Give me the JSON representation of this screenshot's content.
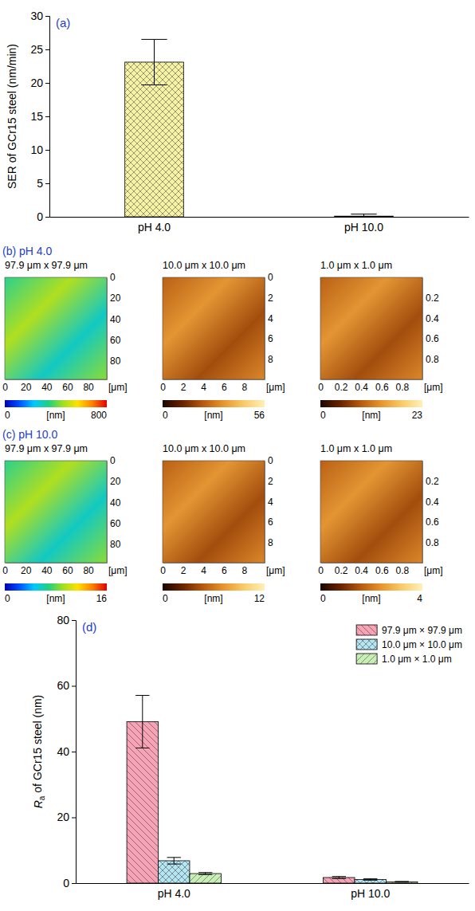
{
  "chart_data": [
    {
      "type": "bar",
      "title": "(a)",
      "y_label": "SER of GCr15 steel (nm/min)",
      "categories": [
        "pH 4.0",
        "pH 10.0"
      ],
      "values": [
        23.1,
        0.1
      ],
      "errors": [
        3.4,
        0.3
      ],
      "color": "#f7f3a6",
      "ylim": [
        0,
        30
      ],
      "yticks": [
        0,
        5,
        10,
        15,
        20,
        25,
        30
      ]
    },
    {
      "type": "image",
      "title": "(b) pH 4.0",
      "panels": [
        {
          "title": "97.9 μm x 97.9 μm",
          "x_label": "[μm]",
          "xlim": [
            0,
            97.9
          ],
          "ylim": [
            0,
            97.9
          ],
          "xticks": [
            0,
            20,
            40,
            60,
            80
          ],
          "yticks": [
            0,
            20,
            40,
            60,
            80
          ],
          "colorbar": {
            "range": [
              0,
              800
            ],
            "ticks": [
              0,
              800
            ],
            "label": "[nm]",
            "colors": [
              "#0000b4",
              "#0050ff",
              "#00c8ff",
              "#20d080",
              "#a0e020",
              "#ffe000",
              "#ff8000",
              "#e00000"
            ]
          }
        },
        {
          "title": "10.0 μm x 10.0 μm",
          "x_label": "[μm]",
          "xlim": [
            0,
            10
          ],
          "ylim": [
            0,
            10
          ],
          "xticks": [
            0,
            2,
            4,
            6,
            8
          ],
          "yticks": [
            0,
            2,
            4,
            6,
            8
          ],
          "colorbar": {
            "range": [
              0,
              56
            ],
            "ticks": [
              0,
              56
            ],
            "label": "[nm]",
            "colors": [
              "#1a0500",
              "#6b2400",
              "#b85a10",
              "#e8962e",
              "#f8cc6a",
              "#fff0b8"
            ]
          }
        },
        {
          "title": "1.0 μm x 1.0 μm",
          "x_label": "[μm]",
          "xlim": [
            0,
            1
          ],
          "ylim": [
            0,
            1
          ],
          "xticks": [
            0,
            0.2,
            0.4,
            0.6,
            0.8
          ],
          "yticks": [
            0.2,
            0.4,
            0.6,
            0.8
          ],
          "colorbar": {
            "range": [
              0,
              23
            ],
            "ticks": [
              0,
              23
            ],
            "label": "[nm]",
            "colors": [
              "#1a0500",
              "#6b2400",
              "#b85a10",
              "#e8962e",
              "#f8cc6a",
              "#fff0b8"
            ]
          }
        }
      ]
    },
    {
      "type": "image",
      "title": "(c) pH 10.0",
      "panels": [
        {
          "title": "97.9 μm x 97.9 μm",
          "x_label": "[μm]",
          "xlim": [
            0,
            97.9
          ],
          "ylim": [
            0,
            97.9
          ],
          "xticks": [
            0,
            20,
            40,
            60,
            80
          ],
          "yticks": [
            0,
            20,
            40,
            60,
            80
          ],
          "colorbar": {
            "range": [
              0,
              16
            ],
            "ticks": [
              0,
              16
            ],
            "label": "[nm]",
            "colors": [
              "#0000b4",
              "#0050ff",
              "#00c8ff",
              "#20d080",
              "#a0e020",
              "#ffe000",
              "#ff8000",
              "#e00000"
            ]
          }
        },
        {
          "title": "10.0 μm x 10.0 μm",
          "x_label": "[μm]",
          "xlim": [
            0,
            10
          ],
          "ylim": [
            0,
            10
          ],
          "xticks": [
            0,
            2,
            4,
            6,
            8
          ],
          "yticks": [
            0,
            2,
            4,
            6,
            8
          ],
          "colorbar": {
            "range": [
              0,
              12
            ],
            "ticks": [
              0,
              12
            ],
            "label": "[nm]",
            "colors": [
              "#1a0500",
              "#6b2400",
              "#b85a10",
              "#e8962e",
              "#f8cc6a",
              "#fff0b8"
            ]
          }
        },
        {
          "title": "1.0 μm x 1.0 μm",
          "x_label": "[μm]",
          "xlim": [
            0,
            1
          ],
          "ylim": [
            0,
            1
          ],
          "xticks": [
            0,
            0.2,
            0.4,
            0.6,
            0.8
          ],
          "yticks": [
            0.2,
            0.4,
            0.6,
            0.8
          ],
          "colorbar": {
            "range": [
              0,
              4
            ],
            "ticks": [
              0,
              4
            ],
            "label": "[nm]",
            "colors": [
              "#1a0500",
              "#6b2400",
              "#b85a10",
              "#e8962e",
              "#f8cc6a",
              "#fff0b8"
            ]
          }
        }
      ]
    },
    {
      "type": "bar",
      "title": "(d)",
      "y_label": "Ra of GCr15 steel (nm)",
      "categories": [
        "pH 4.0",
        "pH 10.0"
      ],
      "series": [
        {
          "name": "97.9 μm × 97.9 μm",
          "color": "#f5a3b5",
          "values": [
            49.1,
            1.7
          ],
          "errors": [
            8.0,
            0.3
          ]
        },
        {
          "name": "10.0 μm × 10.0 μm",
          "color": "#b5e6f2",
          "values": [
            6.8,
            1.1
          ],
          "errors": [
            1.0,
            0.2
          ]
        },
        {
          "name": "1.0 μm × 1.0 μm",
          "color": "#c8edb5",
          "values": [
            2.9,
            0.4
          ],
          "errors": [
            0.3,
            0.1
          ]
        }
      ],
      "ylim": [
        0,
        80
      ],
      "yticks": [
        0,
        20,
        40,
        60,
        80
      ],
      "legend": "top-right"
    }
  ]
}
